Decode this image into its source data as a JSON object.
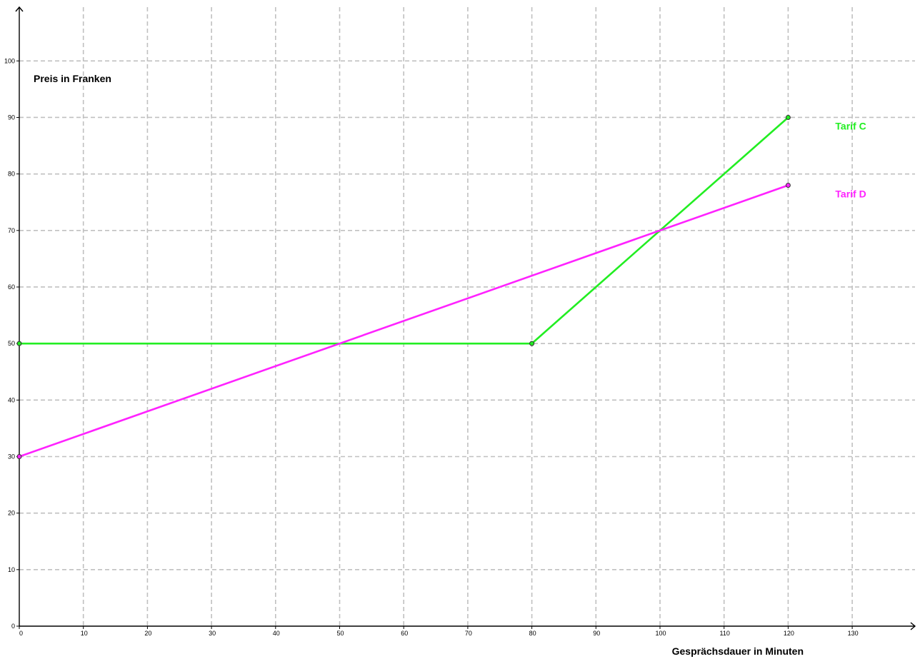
{
  "chart_data": {
    "type": "line",
    "xlabel": "Gesprächsdauer in Minuten",
    "ylabel": "Preis in Franken",
    "xlim": [
      0,
      140
    ],
    "ylim": [
      0,
      110
    ],
    "x_ticks": [
      0,
      10,
      20,
      30,
      40,
      50,
      60,
      70,
      80,
      90,
      100,
      110,
      120,
      130
    ],
    "y_ticks": [
      0,
      10,
      20,
      30,
      40,
      50,
      60,
      70,
      80,
      90,
      100
    ],
    "grid": true,
    "series": [
      {
        "name": "Tarif C",
        "color": "#22ee22",
        "points": [
          {
            "x": 0,
            "y": 50
          },
          {
            "x": 80,
            "y": 50
          },
          {
            "x": 120,
            "y": 90
          }
        ]
      },
      {
        "name": "Tarif D",
        "color": "#ff22ff",
        "points": [
          {
            "x": 0,
            "y": 30
          },
          {
            "x": 120,
            "y": 78
          }
        ]
      }
    ]
  }
}
